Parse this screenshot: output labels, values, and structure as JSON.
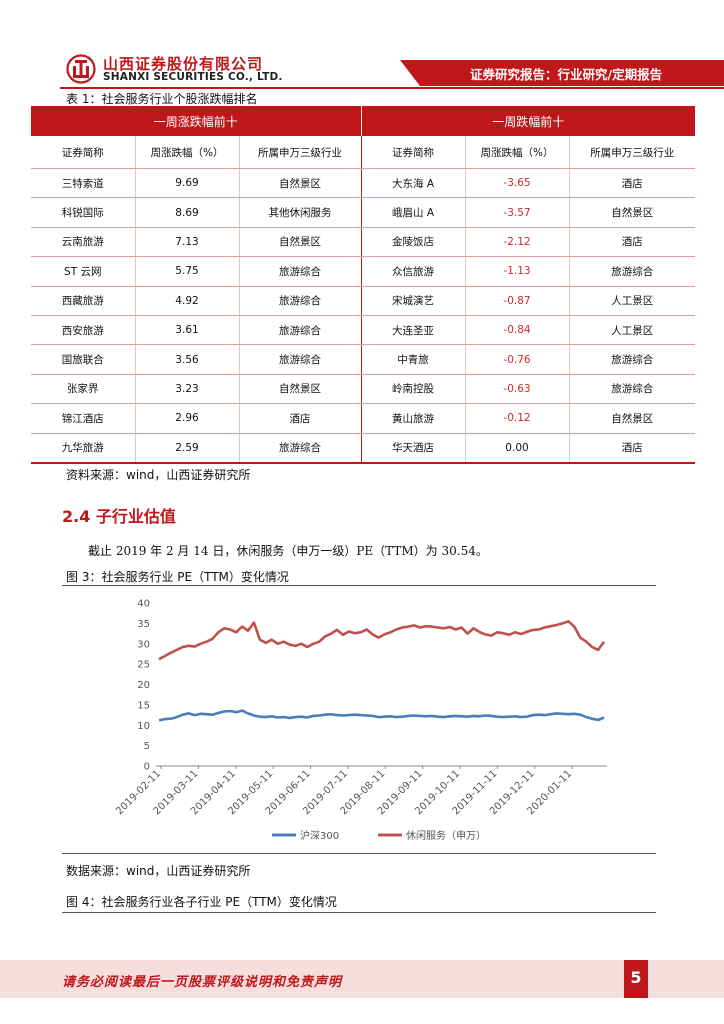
{
  "header": {
    "company_cn": "山西证券股份有限公司",
    "company_en": "SHANXI SECURITIES CO., LTD.",
    "report_type": "证券研究报告：行业研究/定期报告"
  },
  "table1": {
    "caption": "表 1：社会服务行业个股涨跌幅排名",
    "group_left": "一周涨跌幅前十",
    "group_right": "一周跌幅前十",
    "col_headers": [
      "证券简称",
      "周涨跌幅（%）",
      "所属申万三级行业",
      "证券简称",
      "周涨跌幅（%）",
      "所属申万三级行业"
    ],
    "rows": [
      [
        "三特索道",
        "9.69",
        "自然景区",
        "大东海 A",
        "-3.65",
        "酒店"
      ],
      [
        "科锐国际",
        "8.69",
        "其他休闲服务",
        "峨眉山 A",
        "-3.57",
        "自然景区"
      ],
      [
        "云南旅游",
        "7.13",
        "自然景区",
        "金陵饭店",
        "-2.12",
        "酒店"
      ],
      [
        "ST 云网",
        "5.75",
        "旅游综合",
        "众信旅游",
        "-1.13",
        "旅游综合"
      ],
      [
        "西藏旅游",
        "4.92",
        "旅游综合",
        "宋城演艺",
        "-0.87",
        "人工景区"
      ],
      [
        "西安旅游",
        "3.61",
        "旅游综合",
        "大连圣亚",
        "-0.84",
        "人工景区"
      ],
      [
        "国旅联合",
        "3.56",
        "旅游综合",
        "中青旅",
        "-0.76",
        "旅游综合"
      ],
      [
        "张家界",
        "3.23",
        "自然景区",
        "岭南控股",
        "-0.63",
        "旅游综合"
      ],
      [
        "锦江酒店",
        "2.96",
        "酒店",
        "黄山旅游",
        "-0.12",
        "自然景区"
      ],
      [
        "九华旅游",
        "2.59",
        "旅游综合",
        "华天酒店",
        "0.00",
        "酒店"
      ]
    ],
    "source": "资料来源：wind，山西证券研究所"
  },
  "section": {
    "title": "2.4 子行业估值",
    "body": "截止 2019 年 2 月 14 日，休闲服务（申万一级）PE（TTM）为 30.54。"
  },
  "figure3": {
    "caption": "图 3：社会服务行业 PE（TTM）变化情况",
    "source": "数据来源：wind，山西证券研究所"
  },
  "figure4": {
    "caption": "图 4：社会服务行业各子行业 PE（TTM）变化情况"
  },
  "chart_data": {
    "type": "line",
    "title": "",
    "xlabel": "",
    "ylabel": "",
    "ylim": [
      0,
      40
    ],
    "yticks": [
      0,
      5,
      10,
      15,
      20,
      25,
      30,
      35,
      40
    ],
    "xtick_labels": [
      "2019-02-11",
      "2019-03-11",
      "2019-04-11",
      "2019-05-11",
      "2019-06-11",
      "2019-07-11",
      "2019-08-11",
      "2019-09-11",
      "2019-10-11",
      "2019-11-11",
      "2019-12-11",
      "2020-01-11"
    ],
    "grid": false,
    "legend_position": "bottom",
    "series": [
      {
        "name": "沪深300",
        "color": "#4a7ebb",
        "values": [
          11.2,
          11.5,
          11.6,
          12.0,
          12.6,
          12.9,
          12.5,
          12.8,
          12.7,
          12.6,
          13.0,
          13.4,
          13.5,
          13.2,
          13.6,
          12.9,
          12.4,
          12.1,
          12.0,
          12.2,
          11.9,
          12.0,
          11.8,
          12.0,
          12.1,
          11.9,
          12.3,
          12.4,
          12.6,
          12.7,
          12.5,
          12.4,
          12.5,
          12.6,
          12.5,
          12.4,
          12.3,
          12.0,
          12.1,
          12.2,
          12.0,
          12.1,
          12.3,
          12.4,
          12.3,
          12.2,
          12.3,
          12.1,
          12.0,
          12.2,
          12.3,
          12.2,
          12.1,
          12.3,
          12.2,
          12.4,
          12.3,
          12.1,
          12.0,
          12.1,
          12.2,
          12.0,
          12.1,
          12.5,
          12.6,
          12.5,
          12.7,
          12.9,
          12.8,
          12.7,
          12.8,
          12.6,
          12.0,
          11.6,
          11.3,
          11.9
        ]
      },
      {
        "name": "休闲服务（申万）",
        "color": "#c0504d",
        "values": [
          26.2,
          27.0,
          27.8,
          28.5,
          29.2,
          29.5,
          29.3,
          30.0,
          30.5,
          31.2,
          32.8,
          33.8,
          33.5,
          32.8,
          34.2,
          33.2,
          35.2,
          31.0,
          30.2,
          31.0,
          30.0,
          30.5,
          29.8,
          29.5,
          30.0,
          29.2,
          30.0,
          30.5,
          31.8,
          32.5,
          33.4,
          32.2,
          33.0,
          32.6,
          32.8,
          33.5,
          32.3,
          31.5,
          32.3,
          32.8,
          33.5,
          34.0,
          34.2,
          34.5,
          34.0,
          34.3,
          34.2,
          34.0,
          33.8,
          34.1,
          33.5,
          34.0,
          32.5,
          33.8,
          32.9,
          32.3,
          32.0,
          32.8,
          32.6,
          32.2,
          32.8,
          32.4,
          32.9,
          33.4,
          33.5,
          34.0,
          34.3,
          34.6,
          35.0,
          35.5,
          34.2,
          31.5,
          30.5,
          29.2,
          28.5,
          30.5
        ]
      }
    ]
  },
  "footer": {
    "disclaimer": "请务必阅读最后一页股票评级说明和免责声明",
    "page_number": "5"
  }
}
